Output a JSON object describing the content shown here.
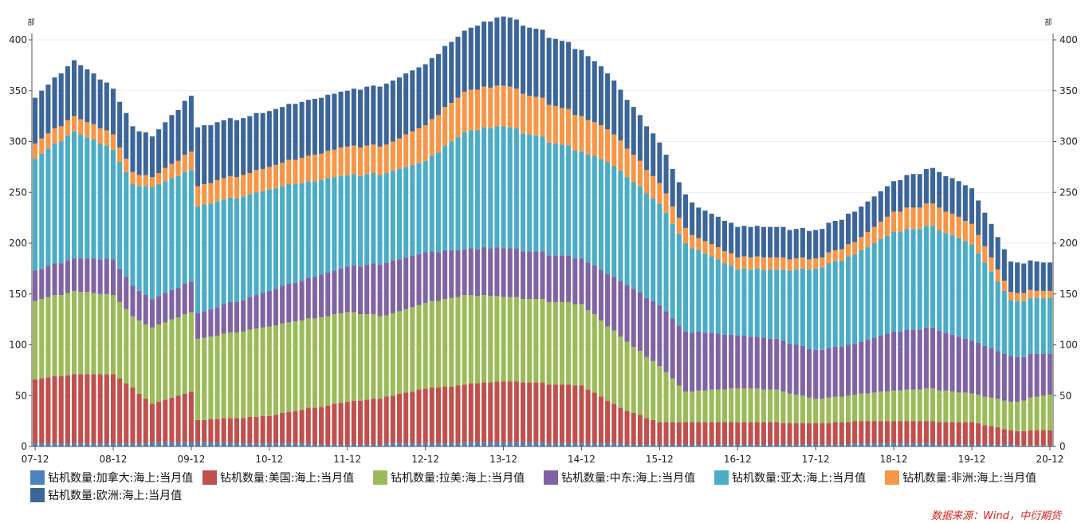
{
  "chart_data": {
    "type": "stacked-bar",
    "title": "",
    "unit_left": "部",
    "unit_right": "部",
    "ylim": [
      0,
      400
    ],
    "yticks": [
      "0",
      "50",
      "100",
      "150",
      "200",
      "250",
      "300",
      "350",
      "400"
    ],
    "start_month": "2007-12",
    "xtick_labels": [
      "07-12",
      "08-12",
      "09-12",
      "10-12",
      "11-12",
      "12-12",
      "13-12",
      "14-12",
      "15-12",
      "16-12",
      "17-12",
      "18-12",
      "19-12",
      "20-12"
    ],
    "series": [
      {
        "name": "钻机数量:加拿大:海上:当月值",
        "color": "#4f81bd",
        "anchors": [
          [
            0,
            3
          ],
          [
            12,
            3
          ],
          [
            24,
            4
          ],
          [
            36,
            3
          ],
          [
            48,
            2
          ],
          [
            60,
            3
          ],
          [
            72,
            4
          ],
          [
            84,
            3
          ],
          [
            96,
            2
          ],
          [
            108,
            2
          ],
          [
            120,
            2
          ],
          [
            132,
            3
          ],
          [
            144,
            2
          ],
          [
            156,
            1
          ]
        ]
      },
      {
        "name": "钻机数量:美国:海上:当月值",
        "color": "#c0504d",
        "anchors": [
          [
            0,
            63
          ],
          [
            6,
            68
          ],
          [
            12,
            68
          ],
          [
            15,
            55
          ],
          [
            18,
            38
          ],
          [
            24,
            50
          ],
          [
            25,
            22
          ],
          [
            36,
            27
          ],
          [
            48,
            42
          ],
          [
            54,
            46
          ],
          [
            60,
            54
          ],
          [
            72,
            60
          ],
          [
            84,
            57
          ],
          [
            90,
            35
          ],
          [
            96,
            22
          ],
          [
            100,
            22
          ],
          [
            108,
            22
          ],
          [
            120,
            21
          ],
          [
            126,
            22
          ],
          [
            132,
            22
          ],
          [
            144,
            22
          ],
          [
            150,
            14
          ],
          [
            156,
            15
          ]
        ]
      },
      {
        "name": "钻机数量:拉美:海上:当月值",
        "color": "#9bbb59",
        "anchors": [
          [
            0,
            77
          ],
          [
            6,
            82
          ],
          [
            12,
            78
          ],
          [
            15,
            70
          ],
          [
            18,
            75
          ],
          [
            24,
            78
          ],
          [
            25,
            80
          ],
          [
            36,
            88
          ],
          [
            48,
            88
          ],
          [
            54,
            80
          ],
          [
            60,
            84
          ],
          [
            66,
            88
          ],
          [
            72,
            83
          ],
          [
            84,
            80
          ],
          [
            90,
            70
          ],
          [
            96,
            55
          ],
          [
            100,
            30
          ],
          [
            108,
            33
          ],
          [
            114,
            32
          ],
          [
            120,
            24
          ],
          [
            126,
            26
          ],
          [
            132,
            30
          ],
          [
            138,
            32
          ],
          [
            144,
            28
          ],
          [
            150,
            28
          ],
          [
            156,
            35
          ]
        ]
      },
      {
        "name": "钻机数量:中东:海上:当月值",
        "color": "#8064a2",
        "anchors": [
          [
            0,
            30
          ],
          [
            6,
            32
          ],
          [
            12,
            35
          ],
          [
            15,
            30
          ],
          [
            18,
            28
          ],
          [
            24,
            30
          ],
          [
            25,
            25
          ],
          [
            36,
            35
          ],
          [
            48,
            45
          ],
          [
            54,
            52
          ],
          [
            60,
            50
          ],
          [
            66,
            45
          ],
          [
            72,
            48
          ],
          [
            84,
            45
          ],
          [
            90,
            55
          ],
          [
            96,
            60
          ],
          [
            102,
            58
          ],
          [
            108,
            52
          ],
          [
            114,
            50
          ],
          [
            120,
            48
          ],
          [
            126,
            50
          ],
          [
            132,
            58
          ],
          [
            138,
            60
          ],
          [
            144,
            52
          ],
          [
            150,
            45
          ],
          [
            156,
            40
          ]
        ]
      },
      {
        "name": "钻机数量:亚太:海上:当月值",
        "color": "#4bacc6",
        "anchors": [
          [
            0,
            110
          ],
          [
            6,
            125
          ],
          [
            12,
            108
          ],
          [
            15,
            100
          ],
          [
            18,
            110
          ],
          [
            24,
            110
          ],
          [
            25,
            105
          ],
          [
            36,
            100
          ],
          [
            48,
            90
          ],
          [
            54,
            88
          ],
          [
            60,
            90
          ],
          [
            66,
            115
          ],
          [
            72,
            120
          ],
          [
            84,
            105
          ],
          [
            88,
            110
          ],
          [
            96,
            100
          ],
          [
            102,
            80
          ],
          [
            108,
            65
          ],
          [
            114,
            68
          ],
          [
            120,
            80
          ],
          [
            126,
            88
          ],
          [
            132,
            98
          ],
          [
            138,
            100
          ],
          [
            144,
            95
          ],
          [
            150,
            55
          ],
          [
            156,
            55
          ]
        ]
      },
      {
        "name": "钻机数量:非洲:海上:当月值",
        "color": "#f79646",
        "anchors": [
          [
            0,
            15
          ],
          [
            6,
            15
          ],
          [
            12,
            15
          ],
          [
            15,
            12
          ],
          [
            18,
            10
          ],
          [
            24,
            18
          ],
          [
            25,
            20
          ],
          [
            36,
            22
          ],
          [
            48,
            28
          ],
          [
            54,
            28
          ],
          [
            60,
            35
          ],
          [
            66,
            40
          ],
          [
            72,
            40
          ],
          [
            84,
            35
          ],
          [
            90,
            30
          ],
          [
            96,
            20
          ],
          [
            102,
            12
          ],
          [
            108,
            12
          ],
          [
            114,
            12
          ],
          [
            120,
            10
          ],
          [
            126,
            12
          ],
          [
            132,
            20
          ],
          [
            138,
            22
          ],
          [
            144,
            20
          ],
          [
            150,
            8
          ],
          [
            156,
            7
          ]
        ]
      },
      {
        "name": "钻机数量:欧洲:海上:当月值",
        "color": "#3c6598",
        "anchors": [
          [
            0,
            45
          ],
          [
            6,
            55
          ],
          [
            12,
            45
          ],
          [
            15,
            45
          ],
          [
            18,
            40
          ],
          [
            24,
            55
          ],
          [
            25,
            58
          ],
          [
            36,
            55
          ],
          [
            48,
            55
          ],
          [
            54,
            60
          ],
          [
            60,
            60
          ],
          [
            66,
            60
          ],
          [
            72,
            68
          ],
          [
            84,
            65
          ],
          [
            90,
            50
          ],
          [
            96,
            40
          ],
          [
            102,
            30
          ],
          [
            108,
            30
          ],
          [
            114,
            30
          ],
          [
            120,
            28
          ],
          [
            126,
            30
          ],
          [
            132,
            30
          ],
          [
            138,
            35
          ],
          [
            144,
            35
          ],
          [
            150,
            30
          ],
          [
            156,
            28
          ]
        ]
      }
    ]
  },
  "legend_items": [
    {
      "label": "钻机数量:加拿大:海上:当月值",
      "color": "#4f81bd"
    },
    {
      "label": "钻机数量:美国:海上:当月值",
      "color": "#c0504d"
    },
    {
      "label": "钻机数量:拉美:海上:当月值",
      "color": "#9bbb59"
    },
    {
      "label": "钻机数量:中东:海上:当月值",
      "color": "#8064a2"
    },
    {
      "label": "钻机数量:亚太:海上:当月值",
      "color": "#4bacc6"
    },
    {
      "label": "钻机数量:非洲:海上:当月值",
      "color": "#f79646"
    },
    {
      "label": "钻机数量:欧洲:海上:当月值",
      "color": "#3c6598"
    }
  ],
  "source": "数据来源：Wind，中衍期货"
}
